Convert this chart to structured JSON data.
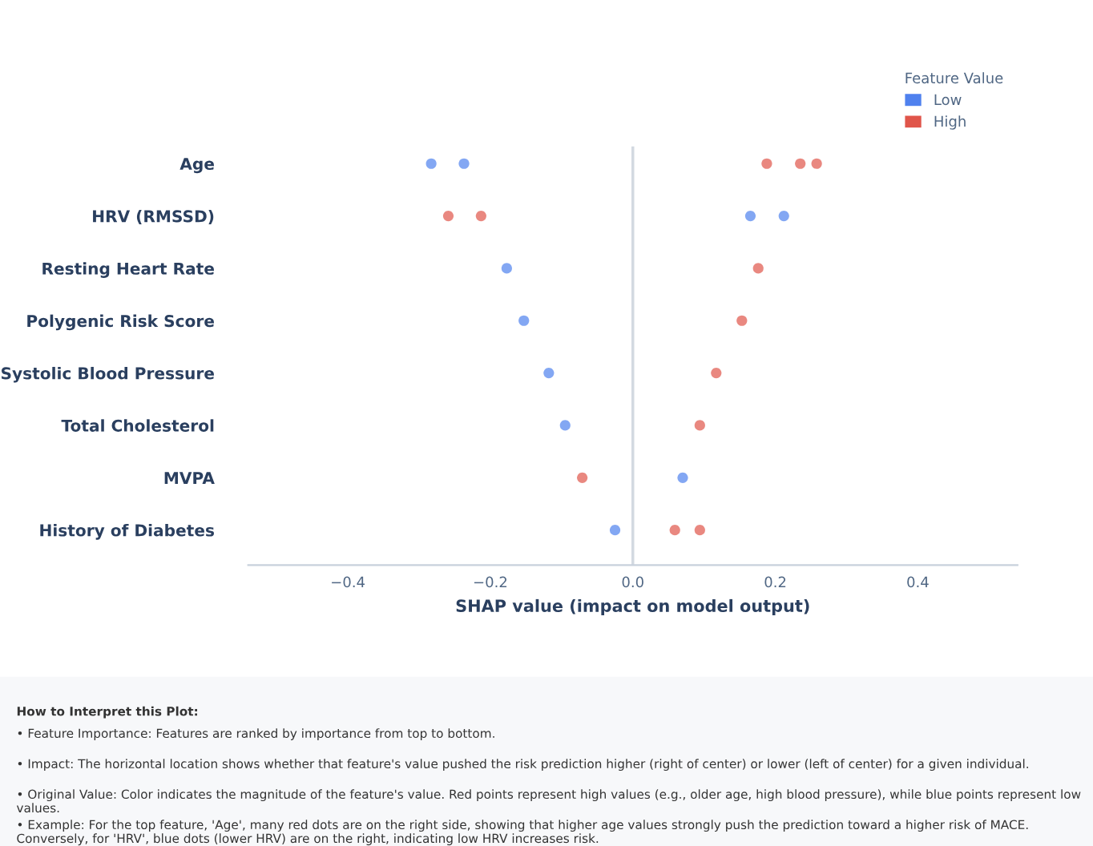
{
  "chart_data": {
    "type": "scatter",
    "orientation": "horizontal",
    "xlabel": "SHAP value (impact on model output)",
    "legend_title": "Feature Value",
    "legend": "top right",
    "grid": false,
    "marker": "circle",
    "categories": [
      "Age",
      "HRV (RMSSD)",
      "Resting Heart Rate",
      "Polygenic Risk Score",
      "Systolic Blood Pressure",
      "Total Cholesterol",
      "MVPA",
      "History of Diabetes"
    ],
    "series": [
      {
        "name": "Low",
        "color": "#4f81ee",
        "values": [
          -0.283,
          0.165,
          -0.177,
          -0.153,
          -0.118,
          -0.095,
          0.07,
          -0.025
        ]
      },
      {
        "color": "#4f81ee",
        "values": [
          -0.237,
          0.212,
          null,
          null,
          null,
          null,
          null,
          null
        ]
      },
      {
        "name": "High",
        "color": "#e0554a",
        "values": [
          0.188,
          -0.259,
          0.176,
          0.153,
          0.117,
          0.094,
          -0.071,
          0.059
        ]
      },
      {
        "color": "#e0554a",
        "values": [
          0.235,
          -0.213,
          null,
          null,
          null,
          null,
          null,
          0.094
        ]
      },
      {
        "color": "#e0554a",
        "values": [
          0.258,
          null,
          null,
          null,
          null,
          null,
          null,
          null
        ]
      }
    ],
    "xlim": [
      -0.54,
      0.54
    ],
    "xticks": [
      {
        "value": -0.4,
        "label": "−0.4"
      },
      {
        "value": -0.2,
        "label": "−0.2"
      },
      {
        "value": 0,
        "label": "0.0"
      },
      0.2,
      0.4
    ],
    "ref_lines": [
      {
        "axis": "x",
        "value": 0,
        "color": "#d3d9e1"
      }
    ],
    "annotations": [
      "How to Interpret this Plot:",
      "• Feature Importance: Features are ranked by importance from top to bottom.",
      "• Impact: The horizontal location shows whether that feature's value pushed the risk prediction higher (right of center) or lower (left of center) for a given individual.",
      "• Original Value: Color indicates the magnitude of the feature's value. Red points represent high values (e.g., older age, high blood pressure), while blue points represent low values.",
      "• Example: For the top feature, 'Age', many red dots are on the right side, showing that higher age values strongly push the prediction toward a higher risk of MACE. Conversely, for 'HRV', blue dots (lower HRV) are on the right, indicating low HRV increases risk."
    ]
  }
}
